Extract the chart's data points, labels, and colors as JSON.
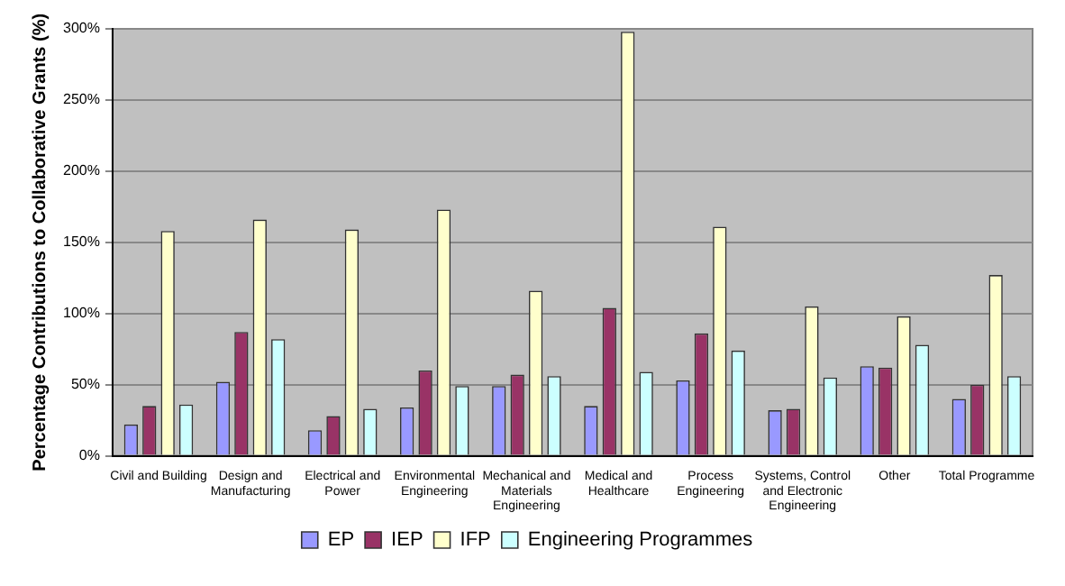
{
  "chart_data": {
    "type": "bar",
    "ylabel": "Percentage Contributions to Collaborative Grants (%)",
    "categories": [
      "Civil and Building",
      "Design and Manufacturing",
      "Electrical and Power",
      "Environmental Engineering",
      "Mechanical and Materials Engineering",
      "Medical and Healthcare",
      "Process Engineering",
      "Systems, Control and Electronic Engineering",
      "Other",
      "Total Programme"
    ],
    "series": [
      {
        "name": "EP",
        "color": "#9999ff",
        "values": [
          22,
          52,
          18,
          34,
          49,
          35,
          53,
          32,
          63,
          40
        ]
      },
      {
        "name": "IEP",
        "color": "#993366",
        "values": [
          35,
          87,
          28,
          60,
          57,
          104,
          86,
          33,
          62,
          50
        ]
      },
      {
        "name": "IFP",
        "color": "#ffffcc",
        "values": [
          158,
          166,
          159,
          173,
          116,
          298,
          161,
          105,
          98,
          127
        ]
      },
      {
        "name": "Engineering Programmes",
        "color": "#ccffff",
        "values": [
          36,
          82,
          33,
          49,
          56,
          59,
          74,
          55,
          78,
          56
        ]
      }
    ],
    "ylim": [
      0,
      300
    ],
    "yticks": [
      {
        "value": 0,
        "label": "0%"
      },
      {
        "value": 50,
        "label": "50%"
      },
      {
        "value": 100,
        "label": "100%"
      },
      {
        "value": 150,
        "label": "150%"
      },
      {
        "value": 200,
        "label": "200%"
      },
      {
        "value": 250,
        "label": "250%"
      },
      {
        "value": 300,
        "label": "300%"
      }
    ],
    "grid": "y",
    "legend": "bottom"
  }
}
